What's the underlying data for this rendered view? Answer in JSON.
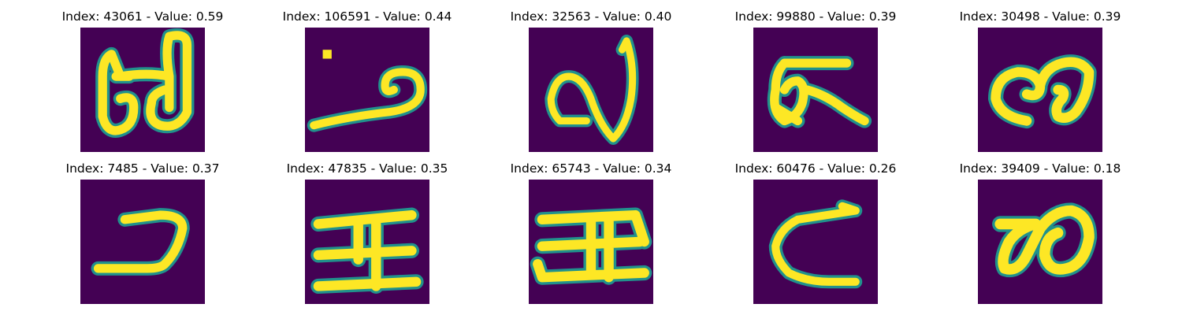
{
  "colors": {
    "background": "#440154",
    "stroke": "#fde725",
    "edge": "#21918c"
  },
  "panels": [
    {
      "title": "Index: 43061 - Value: 0.59"
    },
    {
      "title": "Index: 106591 - Value: 0.44"
    },
    {
      "title": "Index: 32563 - Value: 0.40"
    },
    {
      "title": "Index: 99880 - Value: 0.39"
    },
    {
      "title": "Index: 30498 - Value: 0.39"
    },
    {
      "title": "Index: 7485 - Value: 0.37"
    },
    {
      "title": "Index: 47835 - Value: 0.35"
    },
    {
      "title": "Index: 65743 - Value: 0.34"
    },
    {
      "title": "Index: 60476 - Value: 0.26"
    },
    {
      "title": "Index: 39409 - Value: 0.18"
    }
  ]
}
